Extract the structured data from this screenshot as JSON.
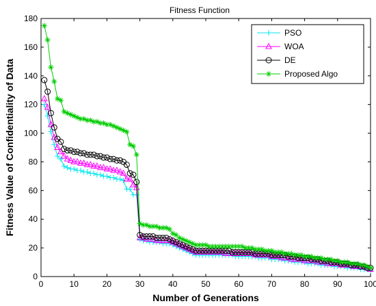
{
  "chart_data": {
    "type": "line",
    "title": "Fitness Function",
    "xlabel": "Number of Generations",
    "ylabel": "Fitness Value of Confidentiality of Data",
    "xlim": [
      0,
      100
    ],
    "ylim": [
      0,
      180
    ],
    "xticks": [
      "0",
      "10",
      "20",
      "30",
      "40",
      "50",
      "60",
      "70",
      "80",
      "90",
      "100"
    ],
    "yticks": [
      "0",
      "20",
      "40",
      "60",
      "80",
      "100",
      "120",
      "140",
      "160",
      "180"
    ],
    "grid": false,
    "legend_position": "top-right",
    "x": [
      1,
      2,
      3,
      4,
      5,
      6,
      7,
      8,
      9,
      10,
      11,
      12,
      13,
      14,
      15,
      16,
      17,
      18,
      19,
      20,
      21,
      22,
      23,
      24,
      25,
      26,
      27,
      28,
      29,
      30,
      31,
      32,
      33,
      34,
      35,
      36,
      37,
      38,
      39,
      40,
      41,
      42,
      43,
      44,
      45,
      46,
      47,
      48,
      49,
      50,
      51,
      52,
      53,
      54,
      55,
      56,
      57,
      58,
      59,
      60,
      61,
      62,
      63,
      64,
      65,
      66,
      67,
      68,
      69,
      70,
      71,
      72,
      73,
      74,
      75,
      76,
      77,
      78,
      79,
      80,
      81,
      82,
      83,
      84,
      85,
      86,
      87,
      88,
      89,
      90,
      91,
      92,
      93,
      94,
      95,
      96,
      97,
      98,
      99,
      100
    ],
    "series": [
      {
        "name": "PSO",
        "color": "#00e5ee",
        "marker": "plus",
        "values": [
          120,
          112,
          101,
          92,
          84,
          82,
          77,
          76,
          75,
          75,
          74,
          74,
          73,
          73,
          72,
          72,
          71,
          71,
          70,
          70,
          69,
          69,
          68,
          68,
          67,
          61,
          61,
          57,
          57,
          26,
          25,
          25,
          24,
          24,
          24,
          24,
          23,
          23,
          23,
          22,
          21,
          20,
          19,
          18,
          17,
          16,
          15,
          15,
          15,
          15,
          15,
          15,
          15,
          15,
          15,
          15,
          15,
          15,
          14,
          14,
          14,
          14,
          14,
          14,
          14,
          13,
          13,
          13,
          13,
          12,
          12,
          12,
          12,
          11,
          11,
          11,
          10,
          10,
          10,
          10,
          9,
          9,
          9,
          9,
          8,
          8,
          8,
          8,
          7,
          7,
          7,
          7,
          6,
          6,
          6,
          6,
          5,
          5,
          5,
          4
        ]
      },
      {
        "name": "WOA",
        "color": "#ff00ff",
        "marker": "triangle",
        "values": [
          124,
          118,
          106,
          97,
          90,
          87,
          84,
          82,
          81,
          80,
          80,
          79,
          79,
          78,
          78,
          77,
          77,
          76,
          76,
          75,
          75,
          74,
          74,
          73,
          72,
          68,
          68,
          64,
          62,
          27,
          27,
          26,
          26,
          26,
          25,
          25,
          25,
          25,
          25,
          24,
          23,
          22,
          21,
          20,
          19,
          18,
          17,
          17,
          17,
          17,
          17,
          17,
          17,
          17,
          17,
          16,
          16,
          16,
          16,
          16,
          16,
          16,
          16,
          16,
          15,
          15,
          15,
          15,
          15,
          14,
          14,
          14,
          13,
          13,
          13,
          12,
          12,
          12,
          12,
          11,
          11,
          11,
          11,
          10,
          10,
          10,
          9,
          9,
          9,
          9,
          8,
          8,
          8,
          8,
          7,
          7,
          7,
          7,
          6,
          5
        ]
      },
      {
        "name": "DE",
        "color": "#000000",
        "marker": "circle",
        "values": [
          137,
          129,
          114,
          104,
          96,
          94,
          89,
          88,
          88,
          87,
          87,
          86,
          86,
          85,
          85,
          85,
          84,
          84,
          83,
          83,
          82,
          82,
          81,
          81,
          80,
          78,
          72,
          71,
          66,
          29,
          28,
          28,
          28,
          28,
          27,
          27,
          27,
          27,
          26,
          25,
          24,
          23,
          22,
          21,
          20,
          19,
          18,
          18,
          18,
          18,
          18,
          18,
          18,
          18,
          18,
          18,
          18,
          17,
          17,
          17,
          17,
          17,
          17,
          17,
          16,
          16,
          16,
          16,
          16,
          15,
          15,
          15,
          15,
          15,
          14,
          14,
          14,
          13,
          13,
          13,
          13,
          12,
          12,
          12,
          11,
          11,
          11,
          10,
          10,
          10,
          9,
          9,
          9,
          8,
          8,
          8,
          7,
          7,
          6,
          6
        ]
      },
      {
        "name": "Proposed Algo",
        "color": "#00cc00",
        "marker": "star",
        "values": [
          175,
          165,
          146,
          136,
          124,
          123,
          115,
          114,
          113,
          112,
          111,
          110,
          110,
          109,
          109,
          108,
          108,
          107,
          107,
          106,
          106,
          105,
          104,
          103,
          102,
          101,
          92,
          91,
          85,
          37,
          36,
          36,
          35,
          35,
          35,
          34,
          34,
          34,
          33,
          30,
          29,
          27,
          26,
          25,
          24,
          23,
          22,
          22,
          22,
          22,
          21,
          21,
          21,
          21,
          21,
          21,
          21,
          21,
          21,
          21,
          21,
          20,
          20,
          20,
          19,
          19,
          19,
          18,
          18,
          18,
          17,
          17,
          17,
          16,
          16,
          16,
          15,
          15,
          15,
          14,
          14,
          14,
          13,
          13,
          13,
          12,
          12,
          12,
          11,
          11,
          10,
          10,
          10,
          9,
          9,
          9,
          8,
          8,
          7,
          6
        ]
      }
    ]
  }
}
